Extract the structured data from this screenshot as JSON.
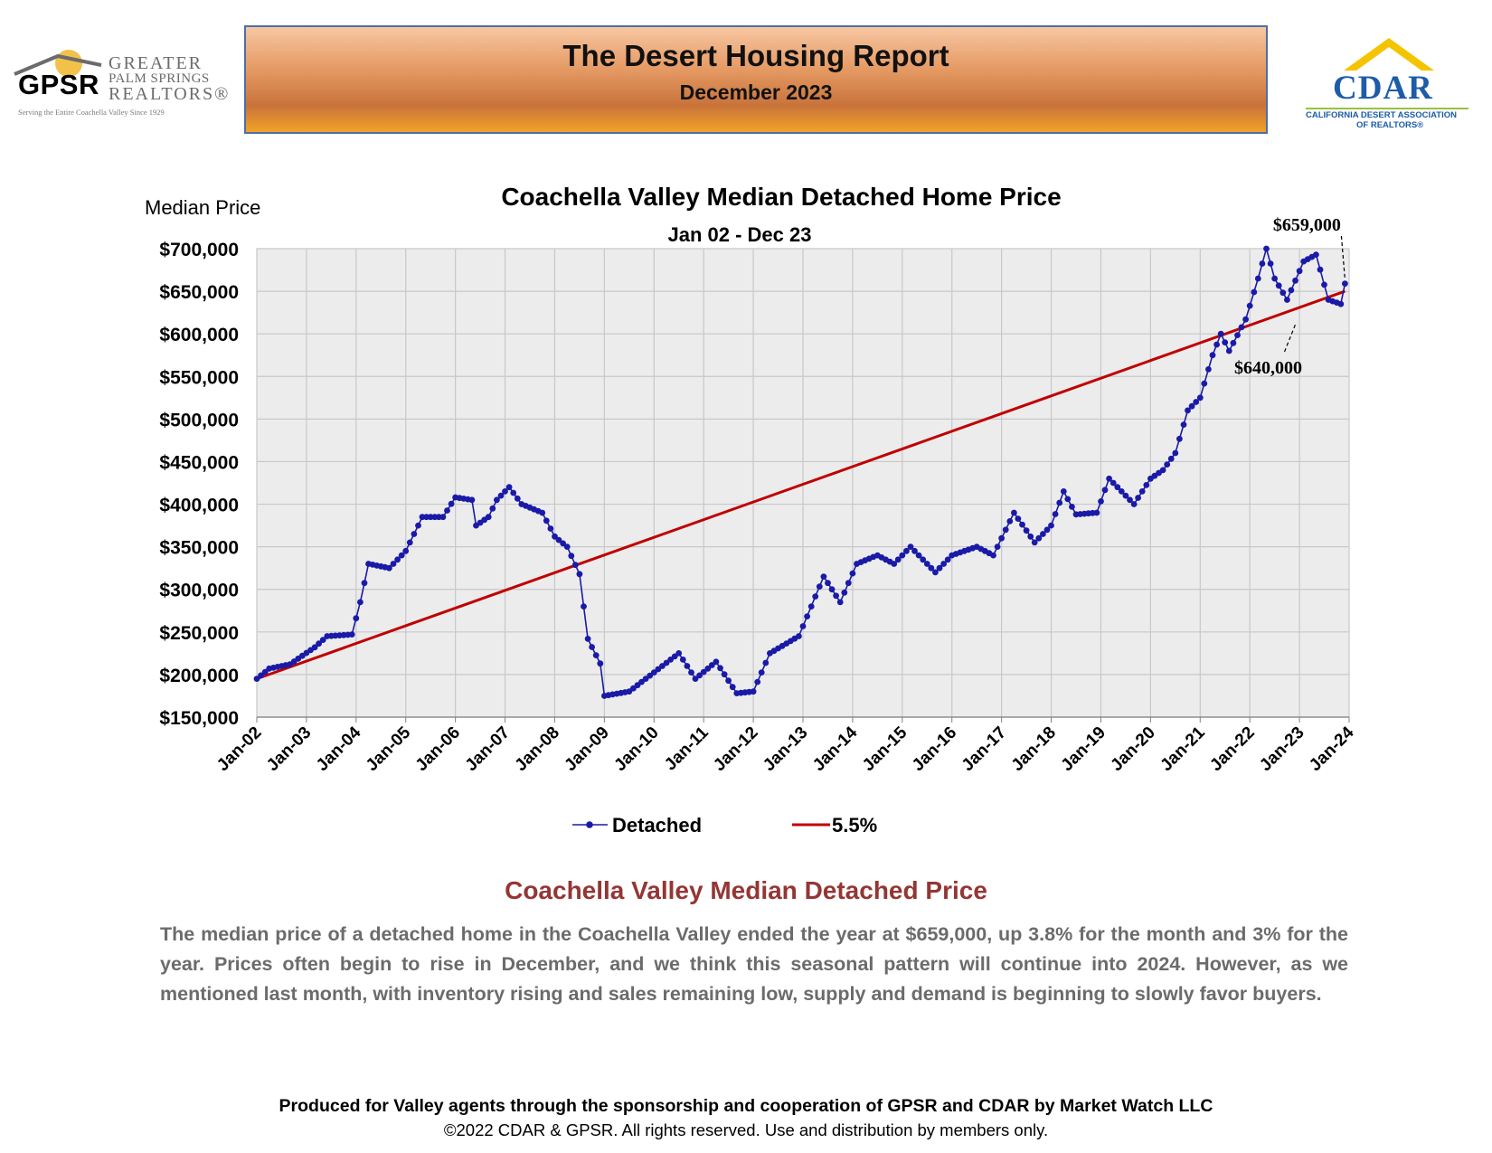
{
  "header": {
    "gpsr_logo": {
      "letters": "GPSR",
      "line1": "GREATER",
      "line2": "PALM SPRINGS",
      "line3": "REALTORS®",
      "tagline": "Serving the Entire Coachella Valley Since 1929"
    },
    "title": "The Desert Housing Report",
    "subtitle": "December 2023",
    "cdar_logo": {
      "name": "CDAR",
      "line1": "CALIFORNIA DESERT ASSOCIATION",
      "line2": "OF REALTORS®"
    }
  },
  "colors": {
    "detached": "#1a1aa8",
    "trend": "#c00000",
    "plot_bg": "#ececec",
    "section_title": "#943634",
    "body_text": "#6b6b6b"
  },
  "chart_data": {
    "type": "line",
    "title": "Coachella Valley Median Detached Home Price",
    "subtitle": "Jan 02 - Dec 23",
    "ylabel": "Median Price",
    "ylim": [
      150000,
      700000
    ],
    "y_ticks": [
      "$150,000",
      "$200,000",
      "$250,000",
      "$300,000",
      "$350,000",
      "$400,000",
      "$450,000",
      "$500,000",
      "$550,000",
      "$600,000",
      "$650,000",
      "$700,000"
    ],
    "x_ticks": [
      "Jan-02",
      "Jan-03",
      "Jan-04",
      "Jan-05",
      "Jan-06",
      "Jan-07",
      "Jan-08",
      "Jan-09",
      "Jan-10",
      "Jan-11",
      "Jan-12",
      "Jan-13",
      "Jan-14",
      "Jan-15",
      "Jan-16",
      "Jan-17",
      "Jan-18",
      "Jan-19",
      "Jan-20",
      "Jan-21",
      "Jan-22",
      "Jan-23",
      "Jan-24"
    ],
    "grid": true,
    "legend_position": "bottom",
    "series": [
      {
        "name": "Detached",
        "style": "line-with-markers",
        "knots": [
          [
            "2002-01",
            195000
          ],
          [
            "2002-04",
            207000
          ],
          [
            "2002-09",
            212000
          ],
          [
            "2003-03",
            232000
          ],
          [
            "2003-06",
            245000
          ],
          [
            "2003-12",
            247000
          ],
          [
            "2004-02",
            285000
          ],
          [
            "2004-04",
            330000
          ],
          [
            "2004-09",
            325000
          ],
          [
            "2005-01",
            345000
          ],
          [
            "2005-05",
            385000
          ],
          [
            "2005-10",
            385000
          ],
          [
            "2006-01",
            408000
          ],
          [
            "2006-05",
            405000
          ],
          [
            "2006-06",
            375000
          ],
          [
            "2006-09",
            385000
          ],
          [
            "2006-11",
            405000
          ],
          [
            "2007-02",
            420000
          ],
          [
            "2007-05",
            400000
          ],
          [
            "2007-10",
            390000
          ],
          [
            "2008-01",
            362000
          ],
          [
            "2008-04",
            350000
          ],
          [
            "2008-07",
            318000
          ],
          [
            "2008-09",
            242000
          ],
          [
            "2008-12",
            213000
          ],
          [
            "2009-01",
            175000
          ],
          [
            "2009-07",
            180000
          ],
          [
            "2010-03",
            210000
          ],
          [
            "2010-07",
            225000
          ],
          [
            "2010-11",
            195000
          ],
          [
            "2011-04",
            215000
          ],
          [
            "2011-09",
            178000
          ],
          [
            "2012-01",
            180000
          ],
          [
            "2012-05",
            225000
          ],
          [
            "2012-12",
            245000
          ],
          [
            "2013-06",
            315000
          ],
          [
            "2013-10",
            285000
          ],
          [
            "2014-02",
            330000
          ],
          [
            "2014-07",
            340000
          ],
          [
            "2014-11",
            330000
          ],
          [
            "2015-03",
            350000
          ],
          [
            "2015-09",
            320000
          ],
          [
            "2016-01",
            340000
          ],
          [
            "2016-07",
            350000
          ],
          [
            "2016-11",
            340000
          ],
          [
            "2017-04",
            390000
          ],
          [
            "2017-09",
            355000
          ],
          [
            "2018-01",
            375000
          ],
          [
            "2018-04",
            415000
          ],
          [
            "2018-07",
            388000
          ],
          [
            "2018-12",
            390000
          ],
          [
            "2019-03",
            430000
          ],
          [
            "2019-09",
            400000
          ],
          [
            "2020-01",
            430000
          ],
          [
            "2020-04",
            440000
          ],
          [
            "2020-07",
            460000
          ],
          [
            "2020-10",
            510000
          ],
          [
            "2021-01",
            525000
          ],
          [
            "2021-04",
            575000
          ],
          [
            "2021-06",
            600000
          ],
          [
            "2021-08",
            580000
          ],
          [
            "2021-12",
            617000
          ],
          [
            "2022-03",
            665000
          ],
          [
            "2022-05",
            700000
          ],
          [
            "2022-07",
            665000
          ],
          [
            "2022-10",
            640000
          ],
          [
            "2023-02",
            685000
          ],
          [
            "2023-05",
            693000
          ],
          [
            "2023-08",
            640000
          ],
          [
            "2023-11",
            635000
          ],
          [
            "2023-12",
            659000
          ]
        ]
      },
      {
        "name": "5.5%",
        "style": "line",
        "start": [
          "2002-01",
          195000
        ],
        "end": [
          "2023-12",
          650000
        ],
        "annual_growth": "5.5%"
      }
    ],
    "annotations": [
      {
        "text": "$659,000",
        "points_to": [
          "2023-12",
          659000
        ]
      },
      {
        "text": "$640,000",
        "points_to": [
          "2022-12",
          613000
        ]
      }
    ]
  },
  "summary": {
    "heading": "Coachella Valley Median Detached Price",
    "text": "The median price of a detached home in the Coachella Valley ended the year at $659,000, up 3.8% for the month and 3% for the year. Prices often begin to rise in December, and we think this seasonal pattern will continue into 2024. However, as we mentioned last month, with inventory rising and sales remaining low, supply and demand is beginning to slowly favor buyers."
  },
  "footer": {
    "line1": "Produced for Valley agents through the sponsorship and cooperation of GPSR and CDAR by Market Watch LLC",
    "line2": "©2022 CDAR & GPSR.  All rights reserved.  Use and distribution by members only."
  }
}
